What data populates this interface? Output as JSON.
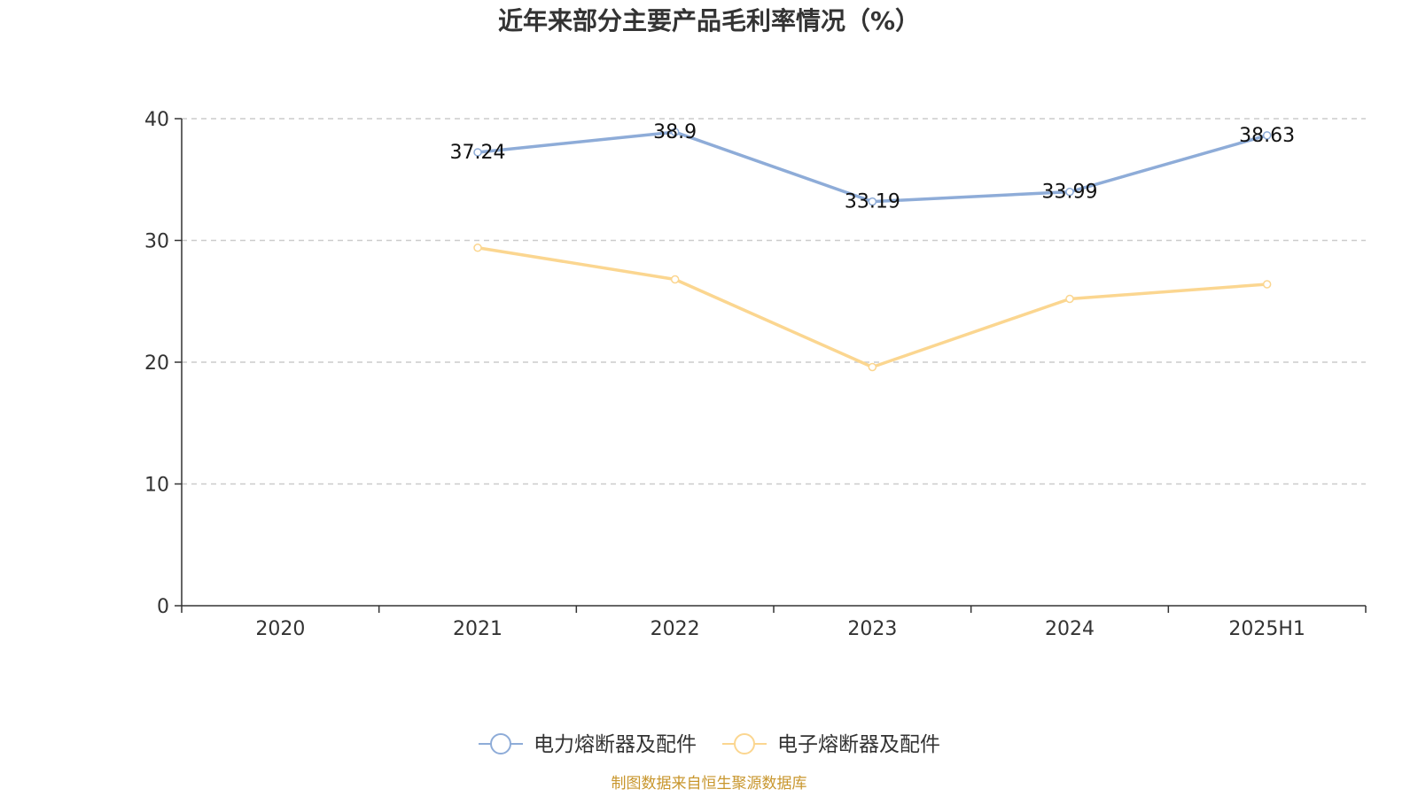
{
  "chart_data": {
    "type": "line",
    "title": "近年来部分主要产品毛利率情况（%）",
    "categories": [
      "2020",
      "2021",
      "2022",
      "2023",
      "2024",
      "2025H1"
    ],
    "ylim": [
      0,
      40
    ],
    "yticks": [
      0,
      10,
      20,
      30,
      40
    ],
    "grid": true,
    "legend_position": "bottom",
    "series": [
      {
        "name": "电力熔断器及配件",
        "color": "#8eacd8",
        "values": [
          null,
          37.24,
          38.9,
          33.19,
          33.99,
          38.63
        ],
        "labels": [
          "",
          "37.24",
          "38.9",
          "33.19",
          "33.99",
          "38.63"
        ]
      },
      {
        "name": "电子熔断器及配件",
        "color": "#fbd690",
        "values": [
          null,
          29.4,
          26.8,
          19.6,
          25.2,
          26.4
        ],
        "labels": []
      }
    ],
    "source": "制图数据来自恒生聚源数据库",
    "source_color": "#c8962d"
  }
}
